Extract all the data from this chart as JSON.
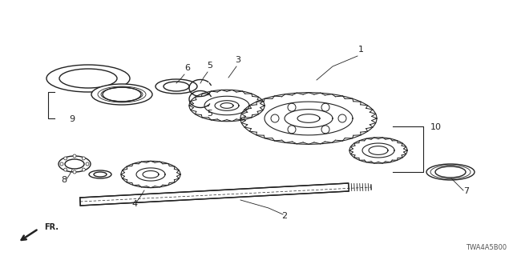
{
  "background_color": "#ffffff",
  "diagram_code": "TWA4A5B00",
  "fr_label": "FR.",
  "line_color": "#222222",
  "line_width": 1.0
}
